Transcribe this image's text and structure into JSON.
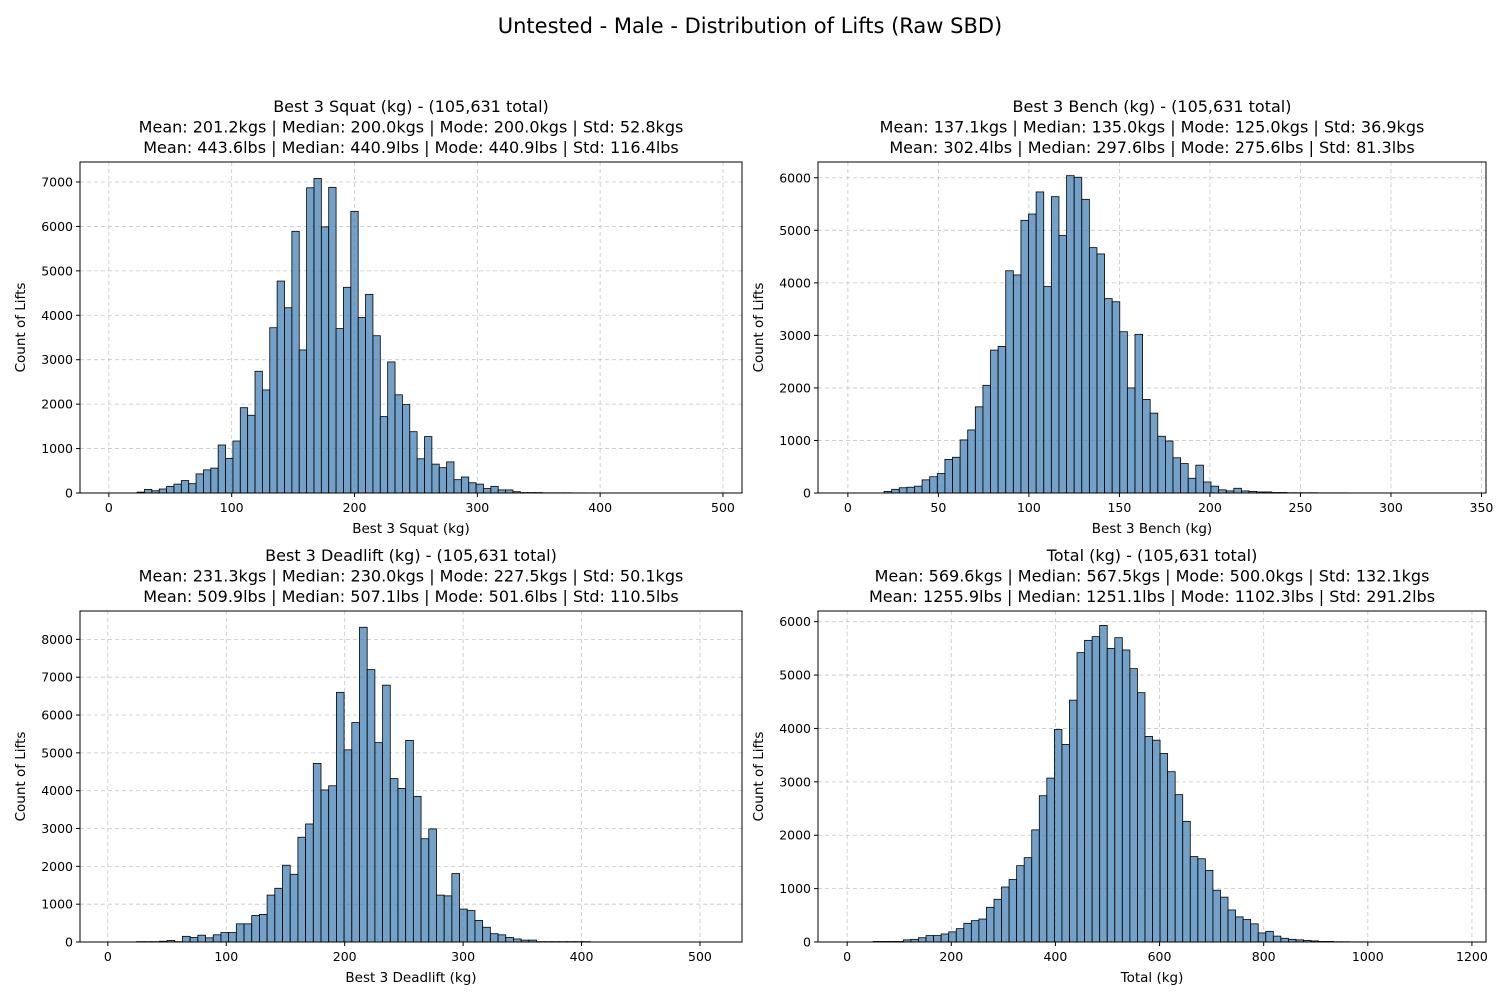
{
  "figure_title": "Untested - Male - Distribution of Lifts (Raw SBD)",
  "colors": {
    "bar_fill": "#4682b4",
    "bar_edge": "#000000",
    "grid": "#b0b0b0"
  },
  "chart_data": [
    {
      "type": "bar",
      "title_lines": [
        "Best 3 Squat (kg) - (105,631 total)",
        "Mean: 201.2kgs | Median: 200.0kgs | Mode: 200.0kgs | Std: 52.8kgs",
        "Mean: 443.6lbs | Median: 440.9lbs | Mode: 440.9lbs | Std: 116.4lbs"
      ],
      "xlabel": "Best 3 Squat (kg)",
      "ylabel": "Count of Lifts",
      "xlim": [
        -23.5,
        515.5
      ],
      "ylim": [
        0,
        7450
      ],
      "xticks": [
        0,
        100,
        200,
        300,
        400,
        500
      ],
      "yticks": [
        0,
        1000,
        2000,
        3000,
        4000,
        5000,
        6000,
        7000
      ],
      "grid": true,
      "bin_start": 23,
      "bin_width": 6,
      "values": [
        20,
        80,
        50,
        90,
        150,
        200,
        280,
        210,
        430,
        520,
        560,
        1080,
        780,
        1170,
        1920,
        1750,
        2740,
        2320,
        3720,
        4770,
        4170,
        5890,
        3220,
        6870,
        7080,
        5990,
        6880,
        3700,
        4630,
        6340,
        3950,
        4470,
        3540,
        1720,
        2950,
        2210,
        1990,
        1380,
        770,
        1270,
        650,
        570,
        700,
        300,
        360,
        230,
        200,
        100,
        150,
        70,
        70,
        30,
        10,
        10,
        10,
        5,
        5,
        5,
        5,
        3,
        3,
        2,
        2,
        2,
        2,
        2,
        1,
        1,
        1,
        1,
        1
      ]
    },
    {
      "type": "bar",
      "title_lines": [
        "Best 3 Bench (kg) - (105,631 total)",
        "Mean: 137.1kgs | Median: 135.0kgs | Mode: 125.0kgs | Std: 36.9kgs",
        "Mean: 302.4lbs | Median: 297.6lbs | Mode: 275.6lbs | Std: 81.3lbs"
      ],
      "xlabel": "Best 3 Bench (kg)",
      "ylabel": "Count of Lifts",
      "xlim": [
        -16.5,
        352.5
      ],
      "ylim": [
        0,
        6300
      ],
      "xticks": [
        0,
        50,
        100,
        150,
        200,
        250,
        300,
        350
      ],
      "yticks": [
        0,
        1000,
        2000,
        3000,
        4000,
        5000,
        6000
      ],
      "grid": true,
      "bin_start": 20,
      "bin_width": 4.2,
      "values": [
        30,
        70,
        100,
        110,
        130,
        250,
        310,
        370,
        640,
        680,
        1010,
        1200,
        1640,
        2050,
        2720,
        2790,
        4230,
        4150,
        5190,
        5310,
        5730,
        3930,
        5640,
        4900,
        6040,
        6010,
        5590,
        4670,
        4550,
        3700,
        3640,
        3070,
        2000,
        3020,
        1780,
        1520,
        1080,
        990,
        670,
        560,
        280,
        530,
        210,
        130,
        60,
        40,
        90,
        40,
        30,
        20,
        20,
        10,
        10,
        5,
        5,
        5,
        5,
        3,
        3,
        3,
        3,
        2,
        2,
        2,
        2,
        2,
        2,
        1,
        1,
        1,
        1,
        1,
        1,
        1,
        1,
        1,
        1
      ]
    },
    {
      "type": "bar",
      "title_lines": [
        "Best 3 Deadlift (kg) - (105,631 total)",
        "Mean: 231.3kgs | Median: 230.0kgs | Mode: 227.5kgs | Std: 50.1kgs",
        "Mean: 509.9lbs | Median: 507.1lbs | Mode: 501.6lbs | Std: 110.5lbs"
      ],
      "xlabel": "Best 3 Deadlift (kg)",
      "ylabel": "Count of Lifts",
      "xlim": [
        -23.5,
        535.5
      ],
      "ylim": [
        0,
        8750
      ],
      "xticks": [
        0,
        100,
        200,
        300,
        400,
        500
      ],
      "yticks": [
        0,
        1000,
        2000,
        3000,
        4000,
        5000,
        6000,
        7000,
        8000
      ],
      "grid": true,
      "bin_start": 24,
      "bin_width": 6.5,
      "values": [
        10,
        10,
        10,
        20,
        40,
        10,
        150,
        120,
        180,
        110,
        190,
        250,
        250,
        480,
        480,
        700,
        730,
        1240,
        1420,
        2030,
        1790,
        2770,
        3120,
        4720,
        4020,
        4130,
        6600,
        5080,
        5800,
        8320,
        7200,
        5270,
        6790,
        4320,
        4060,
        5330,
        3850,
        2730,
        2990,
        1240,
        1220,
        1810,
        870,
        830,
        570,
        390,
        220,
        190,
        120,
        80,
        50,
        50,
        10,
        10,
        10,
        10,
        10,
        10,
        10
      ]
    },
    {
      "type": "bar",
      "title_lines": [
        "Total (kg) - (105,631 total)",
        "Mean: 569.6kgs | Median: 567.5kgs | Mode: 500.0kgs | Std: 132.1kgs",
        "Mean: 1255.9lbs | Median: 1251.1lbs | Mode: 1102.3lbs | Std: 291.2lbs"
      ],
      "xlabel": "Total (kg)",
      "ylabel": "Count of Lifts",
      "xlim": [
        -56,
        1227
      ],
      "ylim": [
        0,
        6200
      ],
      "xticks": [
        0,
        200,
        400,
        600,
        800,
        1000,
        1200
      ],
      "yticks": [
        0,
        1000,
        2000,
        3000,
        4000,
        5000,
        6000
      ],
      "grid": true,
      "bin_start": 50,
      "bin_width": 14.5,
      "values": [
        10,
        10,
        10,
        10,
        40,
        50,
        80,
        120,
        120,
        150,
        190,
        250,
        350,
        400,
        430,
        650,
        800,
        1030,
        1170,
        1430,
        1580,
        2100,
        2740,
        3070,
        3980,
        3700,
        4530,
        5420,
        5650,
        5720,
        5930,
        5500,
        5700,
        5470,
        5120,
        4670,
        3850,
        3780,
        3530,
        3190,
        2760,
        2260,
        1600,
        1560,
        1340,
        970,
        840,
        600,
        470,
        420,
        340,
        170,
        200,
        110,
        70,
        50,
        40,
        30,
        20,
        10,
        10,
        5,
        5,
        3,
        3,
        2,
        2,
        2,
        1,
        1,
        1,
        1,
        1,
        1,
        1,
        1,
        1,
        1,
        1,
        1
      ]
    }
  ]
}
